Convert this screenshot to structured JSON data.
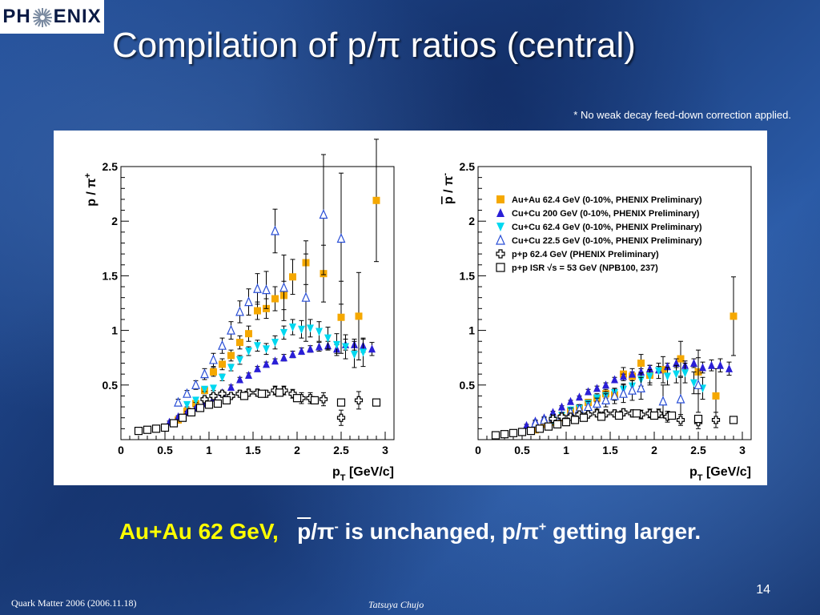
{
  "logo": {
    "left": "PH",
    "right": "ENIX"
  },
  "slide": {
    "title": "Compilation of p/π ratios (central)",
    "note": "* No weak decay feed-down correction applied.",
    "bottom_prefix": "Au+Au 62 GeV,",
    "bottom_pbar": "p",
    "bottom_mid": "/π",
    "bottom_minus": "-",
    "bottom_text2": " is unchanged, p/π",
    "bottom_plus": "+",
    "bottom_text3": " getting larger.",
    "page_number": "14",
    "footer_left": "Quark Matter 2006 (2006.11.18)",
    "footer_author": "Tatsuya Chujo"
  },
  "chart_data": [
    {
      "type": "scatter",
      "ylabel": "p / π+",
      "xlabel": "pT [GeV/c]",
      "xlim": [
        0,
        3.1
      ],
      "ylim": [
        0,
        2.5
      ],
      "x_ticks": [
        "0",
        "0.5",
        "1",
        "1.5",
        "2",
        "2.5",
        "3"
      ],
      "y_ticks": [
        "0.5",
        "1",
        "1.5",
        "2",
        "2.5"
      ],
      "series": [
        {
          "name": "Au+Au 62.4 GeV (0-10%, PHENIX Preliminary)",
          "marker": "square",
          "color": "#f5a800",
          "x": [
            0.65,
            0.75,
            0.85,
            0.95,
            1.05,
            1.15,
            1.25,
            1.35,
            1.45,
            1.55,
            1.65,
            1.75,
            1.85,
            1.95,
            2.1,
            2.3,
            2.5,
            2.7,
            2.9
          ],
          "y": [
            0.18,
            0.26,
            0.33,
            0.45,
            0.62,
            0.69,
            0.77,
            0.89,
            0.97,
            1.18,
            1.2,
            1.29,
            1.32,
            1.49,
            1.62,
            1.52,
            1.12,
            1.13,
            2.19
          ],
          "err": [
            0.02,
            0.02,
            0.02,
            0.03,
            0.04,
            0.05,
            0.05,
            0.06,
            0.07,
            0.08,
            0.09,
            0.11,
            0.13,
            0.16,
            0.2,
            0.26,
            0.33,
            0.4,
            0.56
          ]
        },
        {
          "name": "Cu+Cu 200 GeV (0-10%, PHENIX Preliminary)",
          "marker": "triangle-up",
          "color": "#2a1fd6",
          "x": [
            0.55,
            0.65,
            0.75,
            0.85,
            0.95,
            1.05,
            1.15,
            1.25,
            1.35,
            1.45,
            1.55,
            1.65,
            1.75,
            1.85,
            1.95,
            2.05,
            2.15,
            2.25,
            2.35,
            2.45,
            2.55,
            2.65,
            2.75,
            2.85
          ],
          "y": [
            0.16,
            0.21,
            0.25,
            0.29,
            0.33,
            0.38,
            0.43,
            0.48,
            0.55,
            0.59,
            0.65,
            0.69,
            0.72,
            0.75,
            0.78,
            0.81,
            0.83,
            0.85,
            0.86,
            0.83,
            0.87,
            0.87,
            0.86,
            0.83
          ],
          "err": [
            0.01,
            0.01,
            0.01,
            0.01,
            0.01,
            0.01,
            0.01,
            0.02,
            0.02,
            0.02,
            0.02,
            0.02,
            0.02,
            0.03,
            0.03,
            0.03,
            0.03,
            0.04,
            0.04,
            0.04,
            0.05,
            0.05,
            0.06,
            0.06
          ]
        },
        {
          "name": "Cu+Cu 62.4 GeV (0-10%, PHENIX Preliminary)",
          "marker": "triangle-down",
          "color": "#00d8f0",
          "x": [
            0.75,
            0.85,
            0.95,
            1.05,
            1.15,
            1.25,
            1.35,
            1.45,
            1.55,
            1.65,
            1.75,
            1.85,
            1.95,
            2.05,
            2.15,
            2.25,
            2.35,
            2.45,
            2.55,
            2.65,
            2.75
          ],
          "y": [
            0.32,
            0.36,
            0.46,
            0.47,
            0.57,
            0.66,
            0.73,
            0.81,
            0.86,
            0.83,
            0.89,
            0.98,
            1.03,
            1.01,
            1.02,
            0.99,
            0.93,
            0.87,
            0.85,
            0.78,
            0.8
          ],
          "err": [
            0.02,
            0.02,
            0.02,
            0.02,
            0.03,
            0.03,
            0.04,
            0.04,
            0.05,
            0.05,
            0.06,
            0.06,
            0.07,
            0.08,
            0.08,
            0.09,
            0.1,
            0.1,
            0.11,
            0.12,
            0.13
          ]
        },
        {
          "name": "Cu+Cu 22.5  GeV (0-10%, PHENIX Preliminary)",
          "marker": "triangle-open",
          "color": "#2a4fd6",
          "x": [
            0.65,
            0.75,
            0.85,
            0.95,
            1.05,
            1.15,
            1.25,
            1.35,
            1.45,
            1.55,
            1.65,
            1.75,
            1.85,
            2.1,
            2.3,
            2.5
          ],
          "y": [
            0.34,
            0.42,
            0.5,
            0.6,
            0.73,
            0.86,
            1.0,
            1.17,
            1.26,
            1.38,
            1.37,
            1.91,
            1.39,
            1.3,
            2.06,
            1.84
          ],
          "err": [
            0.03,
            0.03,
            0.04,
            0.05,
            0.06,
            0.07,
            0.08,
            0.1,
            0.12,
            0.14,
            0.17,
            0.2,
            0.3,
            0.4,
            0.55,
            0.6
          ]
        },
        {
          "name": "p+p 62.4 GeV (PHENIX Preliminary)",
          "marker": "cross-open",
          "color": "#000000",
          "x": [
            0.95,
            1.05,
            1.15,
            1.25,
            1.35,
            1.45,
            1.55,
            1.65,
            1.75,
            1.85,
            1.95,
            2.05,
            2.15,
            2.3,
            2.5,
            2.7
          ],
          "y": [
            0.37,
            0.4,
            0.42,
            0.4,
            0.42,
            0.43,
            0.43,
            0.42,
            0.45,
            0.45,
            0.42,
            0.38,
            0.38,
            0.37,
            0.2,
            0.36
          ],
          "err": [
            0.02,
            0.02,
            0.02,
            0.02,
            0.03,
            0.03,
            0.03,
            0.03,
            0.04,
            0.04,
            0.04,
            0.05,
            0.05,
            0.06,
            0.07,
            0.08
          ]
        },
        {
          "name": "p+p ISR √s = 53 GeV (NPB100, 237)",
          "marker": "square-open",
          "color": "#000000",
          "x": [
            0.2,
            0.3,
            0.4,
            0.5,
            0.6,
            0.7,
            0.8,
            0.9,
            1.0,
            1.1,
            1.2,
            1.4,
            1.6,
            1.8,
            2.0,
            2.2,
            2.5,
            2.9
          ],
          "y": [
            0.08,
            0.09,
            0.1,
            0.11,
            0.15,
            0.2,
            0.25,
            0.29,
            0.32,
            0.33,
            0.36,
            0.4,
            0.42,
            0.43,
            0.38,
            0.36,
            0.34,
            0.34
          ],
          "err": [
            0.0,
            0.0,
            0.0,
            0.0,
            0.0,
            0.0,
            0.0,
            0.0,
            0.0,
            0.0,
            0.0,
            0.0,
            0.0,
            0.0,
            0.0,
            0.0,
            0.0,
            0.0
          ]
        }
      ]
    },
    {
      "type": "scatter",
      "ylabel": "p / π-",
      "xlabel": "pT [GeV/c]",
      "xlim": [
        0,
        3.1
      ],
      "ylim": [
        0,
        2.5
      ],
      "x_ticks": [
        "0",
        "0.5",
        "1",
        "1.5",
        "2",
        "2.5",
        "3"
      ],
      "y_ticks": [
        "0.5",
        "1",
        "1.5",
        "2",
        "2.5"
      ],
      "legend_position": "top-right",
      "series": [
        {
          "name": "Au+Au 62.4 GeV (0-10%, PHENIX Preliminary)",
          "marker": "square",
          "color": "#f5a800",
          "x": [
            0.65,
            0.75,
            0.85,
            0.95,
            1.05,
            1.15,
            1.25,
            1.35,
            1.45,
            1.55,
            1.65,
            1.75,
            1.85,
            1.95,
            2.1,
            2.3,
            2.5,
            2.7,
            2.9
          ],
          "y": [
            0.09,
            0.14,
            0.16,
            0.2,
            0.26,
            0.29,
            0.34,
            0.38,
            0.42,
            0.41,
            0.6,
            0.58,
            0.7,
            0.59,
            0.64,
            0.74,
            0.62,
            0.4,
            1.13
          ],
          "err": [
            0.01,
            0.01,
            0.01,
            0.02,
            0.02,
            0.03,
            0.03,
            0.04,
            0.04,
            0.05,
            0.06,
            0.07,
            0.08,
            0.09,
            0.12,
            0.16,
            0.2,
            0.25,
            0.36
          ]
        },
        {
          "name": "Cu+Cu 200 GeV (0-10%, PHENIX Preliminary)",
          "marker": "triangle-up",
          "color": "#2a1fd6",
          "x": [
            0.55,
            0.65,
            0.75,
            0.85,
            0.95,
            1.05,
            1.15,
            1.25,
            1.35,
            1.45,
            1.55,
            1.65,
            1.75,
            1.85,
            1.95,
            2.05,
            2.15,
            2.25,
            2.35,
            2.45,
            2.55,
            2.65,
            2.75,
            2.85
          ],
          "y": [
            0.13,
            0.17,
            0.2,
            0.25,
            0.3,
            0.35,
            0.39,
            0.44,
            0.47,
            0.5,
            0.55,
            0.58,
            0.6,
            0.62,
            0.65,
            0.64,
            0.67,
            0.7,
            0.68,
            0.7,
            0.66,
            0.68,
            0.68,
            0.65
          ],
          "err": [
            0.01,
            0.01,
            0.01,
            0.01,
            0.01,
            0.01,
            0.01,
            0.02,
            0.02,
            0.02,
            0.02,
            0.02,
            0.02,
            0.03,
            0.03,
            0.03,
            0.03,
            0.04,
            0.04,
            0.04,
            0.05,
            0.05,
            0.06,
            0.06
          ]
        },
        {
          "name": "Cu+Cu 62.4 GeV (0-10%, PHENIX Preliminary)",
          "marker": "triangle-down",
          "color": "#00d8f0",
          "x": [
            0.85,
            0.95,
            1.05,
            1.15,
            1.25,
            1.35,
            1.45,
            1.55,
            1.65,
            1.75,
            1.85,
            1.95,
            2.05,
            2.15,
            2.25,
            2.35,
            2.45,
            2.55
          ],
          "y": [
            0.18,
            0.22,
            0.27,
            0.29,
            0.33,
            0.38,
            0.4,
            0.43,
            0.46,
            0.49,
            0.55,
            0.58,
            0.63,
            0.58,
            0.6,
            0.61,
            0.52,
            0.47
          ],
          "err": [
            0.02,
            0.02,
            0.02,
            0.02,
            0.03,
            0.03,
            0.04,
            0.04,
            0.05,
            0.05,
            0.06,
            0.06,
            0.07,
            0.08,
            0.08,
            0.09,
            0.1,
            0.1
          ]
        },
        {
          "name": "Cu+Cu 22.5  GeV (0-10%, PHENIX Preliminary)",
          "marker": "triangle-open",
          "color": "#2a4fd6",
          "x": [
            0.65,
            0.75,
            0.85,
            0.95,
            1.05,
            1.15,
            1.25,
            1.35,
            1.45,
            1.55,
            1.65,
            1.75,
            1.85,
            2.1,
            2.3,
            2.5
          ],
          "y": [
            0.15,
            0.18,
            0.2,
            0.22,
            0.25,
            0.28,
            0.3,
            0.33,
            0.36,
            0.4,
            0.42,
            0.45,
            0.47,
            0.35,
            0.37,
            0.5
          ],
          "err": [
            0.02,
            0.02,
            0.03,
            0.03,
            0.04,
            0.04,
            0.05,
            0.05,
            0.06,
            0.07,
            0.08,
            0.09,
            0.1,
            0.15,
            0.2,
            0.25
          ]
        },
        {
          "name": "p+p 62.4 GeV (PHENIX Preliminary)",
          "marker": "cross-open",
          "color": "#000000",
          "x": [
            0.85,
            0.95,
            1.05,
            1.15,
            1.25,
            1.35,
            1.45,
            1.55,
            1.65,
            1.75,
            1.85,
            1.95,
            2.05,
            2.15,
            2.3,
            2.5,
            2.7
          ],
          "y": [
            0.19,
            0.21,
            0.21,
            0.23,
            0.23,
            0.24,
            0.24,
            0.24,
            0.25,
            0.24,
            0.23,
            0.24,
            0.24,
            0.21,
            0.18,
            0.16,
            0.18
          ],
          "err": [
            0.02,
            0.02,
            0.02,
            0.02,
            0.02,
            0.03,
            0.03,
            0.03,
            0.03,
            0.03,
            0.04,
            0.04,
            0.04,
            0.05,
            0.05,
            0.06,
            0.07
          ]
        },
        {
          "name": "p+p ISR √s = 53 GeV (NPB100, 237)",
          "marker": "square-open",
          "color": "#000000",
          "x": [
            0.2,
            0.3,
            0.4,
            0.5,
            0.6,
            0.7,
            0.8,
            0.9,
            1.0,
            1.1,
            1.2,
            1.4,
            1.6,
            1.8,
            2.0,
            2.2,
            2.5,
            2.9
          ],
          "y": [
            0.04,
            0.05,
            0.06,
            0.07,
            0.08,
            0.1,
            0.12,
            0.14,
            0.16,
            0.18,
            0.2,
            0.21,
            0.22,
            0.24,
            0.22,
            0.22,
            0.19,
            0.18
          ],
          "err": [
            0.0,
            0.0,
            0.0,
            0.0,
            0.0,
            0.0,
            0.0,
            0.0,
            0.0,
            0.0,
            0.0,
            0.0,
            0.0,
            0.0,
            0.0,
            0.0,
            0.0,
            0.0
          ]
        }
      ]
    }
  ]
}
